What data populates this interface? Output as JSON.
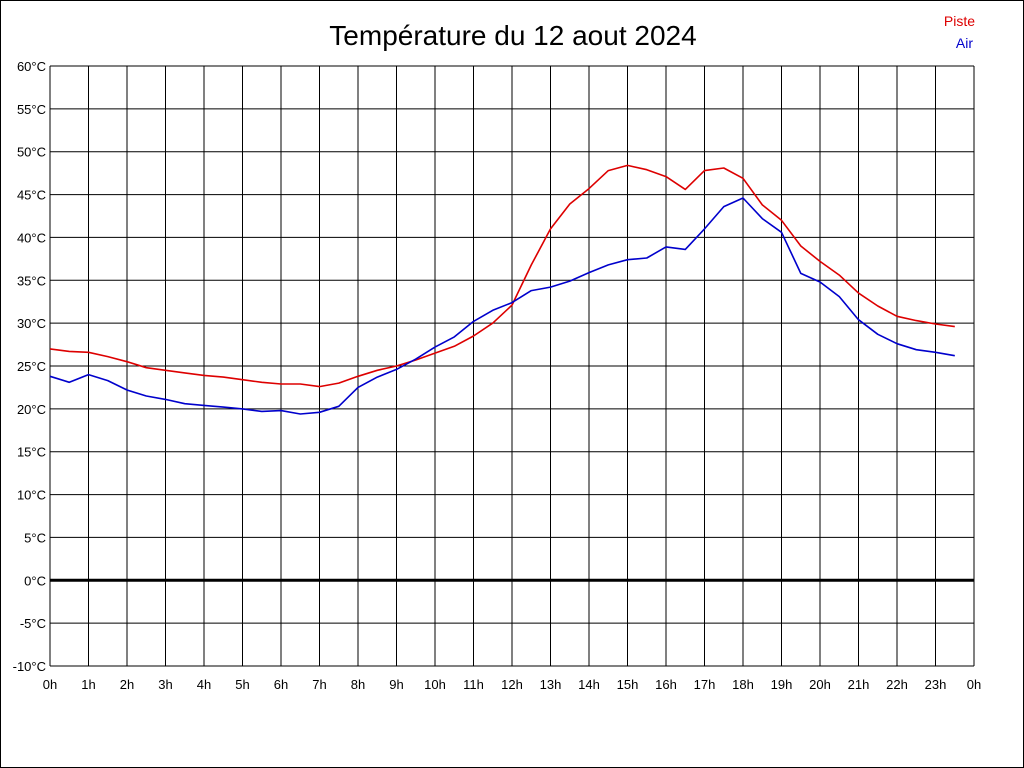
{
  "chart_data": {
    "type": "line",
    "title": "Température du 12 aout 2024",
    "xlabel": "",
    "ylabel": "",
    "x_tick_labels": [
      "0h",
      "1h",
      "2h",
      "3h",
      "4h",
      "5h",
      "6h",
      "7h",
      "8h",
      "9h",
      "10h",
      "11h",
      "12h",
      "13h",
      "14h",
      "15h",
      "16h",
      "17h",
      "18h",
      "19h",
      "20h",
      "21h",
      "22h",
      "23h",
      "0h"
    ],
    "y_tick_labels": [
      "60°C",
      "55°C",
      "50°C",
      "45°C",
      "40°C",
      "35°C",
      "30°C",
      "25°C",
      "20°C",
      "15°C",
      "10°C",
      "5°C",
      "0°C",
      "-5°C",
      "-10°C"
    ],
    "xlim": [
      0,
      24
    ],
    "ylim": [
      -10,
      60
    ],
    "grid": true,
    "zero_line": true,
    "legend_position": "top-right",
    "x": [
      0,
      0.5,
      1,
      1.5,
      2,
      2.5,
      3,
      3.5,
      4,
      4.5,
      5,
      5.5,
      6,
      6.5,
      7,
      7.5,
      8,
      8.5,
      9,
      9.5,
      10,
      10.5,
      11,
      11.5,
      12,
      12.5,
      13,
      13.5,
      14,
      14.5,
      15,
      15.5,
      16,
      16.5,
      17,
      17.5,
      18,
      18.5,
      19,
      19.5,
      20,
      20.5,
      21,
      21.5,
      22,
      22.5,
      23,
      23.5
    ],
    "series": [
      {
        "name": "Piste",
        "color": "#dd0000",
        "values": [
          27.0,
          26.7,
          26.6,
          26.1,
          25.5,
          24.8,
          24.5,
          24.2,
          23.9,
          23.7,
          23.4,
          23.1,
          22.9,
          22.9,
          22.6,
          23.0,
          23.8,
          24.5,
          25.0,
          25.7,
          26.5,
          27.3,
          28.5,
          30.0,
          32.1,
          36.8,
          41.0,
          43.9,
          45.7,
          47.8,
          48.4,
          47.9,
          47.1,
          45.6,
          47.8,
          48.1,
          46.9,
          43.8,
          42.0,
          39.0,
          37.2,
          35.6,
          33.5,
          32.0,
          30.8,
          30.3,
          29.9,
          29.6
        ]
      },
      {
        "name": "Air",
        "color": "#0000cc",
        "values": [
          23.8,
          23.1,
          24.0,
          23.3,
          22.2,
          21.5,
          21.1,
          20.6,
          20.4,
          20.2,
          20.0,
          19.7,
          19.8,
          19.4,
          19.6,
          20.3,
          22.5,
          23.7,
          24.6,
          25.8,
          27.2,
          28.4,
          30.2,
          31.5,
          32.4,
          33.8,
          34.2,
          34.9,
          35.9,
          36.8,
          37.4,
          37.6,
          38.9,
          38.6,
          41.0,
          43.6,
          44.6,
          42.2,
          40.6,
          35.8,
          34.8,
          33.1,
          30.4,
          28.7,
          27.6,
          26.9,
          26.6,
          26.2
        ]
      }
    ]
  }
}
